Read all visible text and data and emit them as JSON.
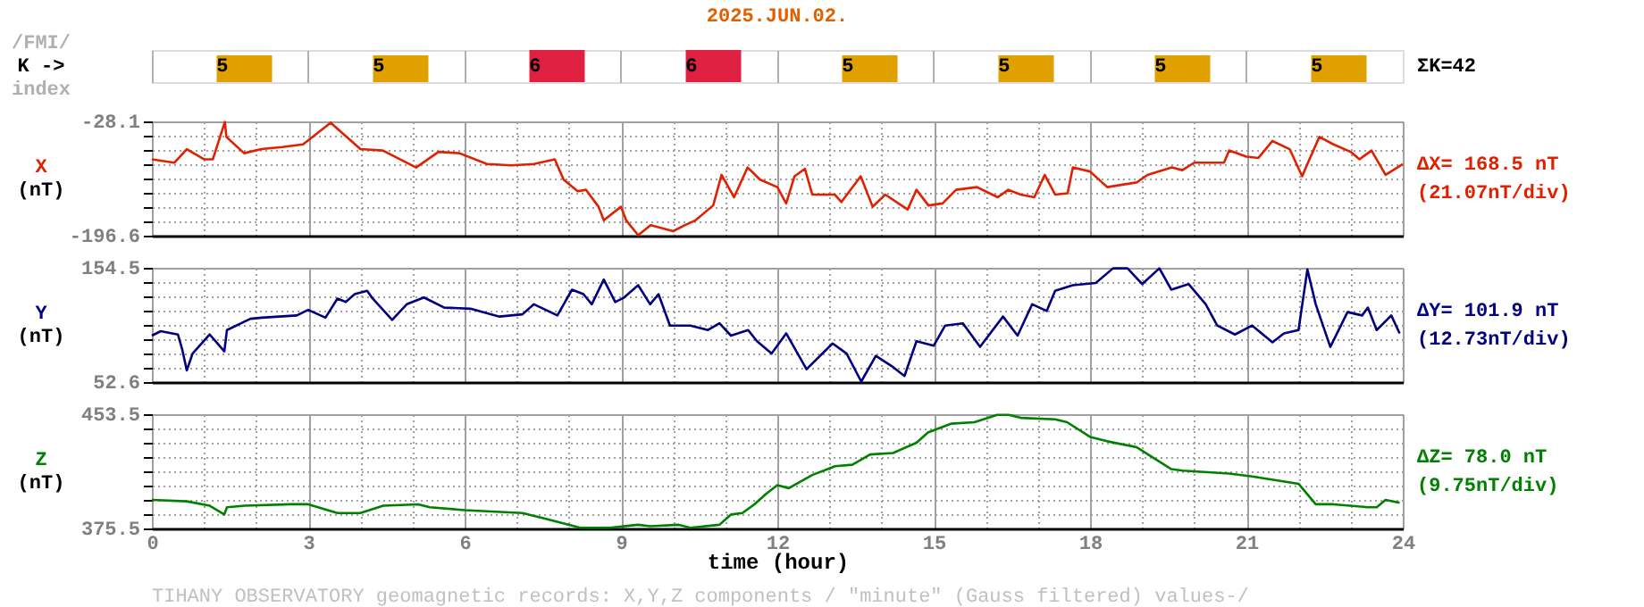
{
  "chart_data": [
    {
      "type": "bar",
      "title": "2025.JUN.02.",
      "ylabel": "/FMI/\nK ->\nindex",
      "categories": [
        null,
        null,
        null,
        null,
        null,
        null,
        null,
        null
      ],
      "values": [
        5,
        5,
        6,
        6,
        5,
        5,
        5,
        5
      ],
      "colors": [
        "#e0a000",
        "#e0a000",
        "#e02040",
        "#e02040",
        "#e0a000",
        "#e0a000",
        "#e0a000",
        "#e0a000"
      ],
      "data_labels": true,
      "grid": "x",
      "annotations": [
        "ΣK=42"
      ]
    },
    {
      "type": "line",
      "ylabel": "X\n(nT)",
      "xlim": [
        0,
        24
      ],
      "ylim": [
        -196.6,
        -28.1
      ],
      "xticks": [
        0,
        {
          "value": 1,
          "label": null
        },
        {
          "value": 2,
          "label": null
        },
        3,
        {
          "value": 4,
          "label": null
        },
        {
          "value": 5,
          "label": null
        },
        6,
        {
          "value": 7,
          "label": null
        },
        {
          "value": 8,
          "label": null
        },
        9,
        {
          "value": 10,
          "label": null
        },
        {
          "value": 11,
          "label": null
        },
        12,
        {
          "value": 13,
          "label": null
        },
        {
          "value": 14,
          "label": null
        },
        15,
        {
          "value": 16,
          "label": null
        },
        {
          "value": 17,
          "label": null
        },
        18,
        {
          "value": 19,
          "label": null
        },
        {
          "value": 20,
          "label": null
        },
        21,
        {
          "value": 22,
          "label": null
        },
        {
          "value": 23,
          "label": null
        },
        24
      ],
      "yticks": [
        -196.6,
        {
          "value": -175.54,
          "label": null
        },
        {
          "value": -154.48,
          "label": null
        },
        {
          "value": -133.41,
          "label": null
        },
        {
          "value": -112.35,
          "label": null
        },
        {
          "value": -91.29,
          "label": null
        },
        {
          "value": -70.23,
          "label": null
        },
        {
          "value": -49.16,
          "label": null
        },
        -28.1
      ],
      "grid": true,
      "tick_labels": "y",
      "annotations": [
        "ΔX= 168.5 nT",
        "(21.07nT/div)"
      ],
      "series": [
        {
          "color": "#e02000",
          "x": [
            0,
            0.43,
            0.67,
            1.0,
            1.17,
            1.4,
            1.43,
            1.77,
            2.1,
            2.5,
            2.9,
            3.43,
            4.0,
            4.43,
            5.07,
            5.5,
            5.9,
            6.43,
            6.9,
            7.33,
            7.73,
            7.9,
            8.17,
            8.33,
            8.57,
            8.67,
            9.0,
            9.1,
            9.33,
            9.57,
            10.0,
            10.23,
            10.43,
            10.77,
            10.93,
            11.17,
            11.43,
            11.67,
            12.0,
            12.17,
            12.33,
            12.53,
            12.67,
            13.1,
            13.23,
            13.6,
            13.83,
            14.07,
            14.5,
            14.67,
            14.9,
            15.17,
            15.43,
            15.83,
            16.23,
            16.43,
            16.67,
            16.93,
            17.13,
            17.33,
            17.57,
            17.67,
            18.0,
            18.33,
            18.9,
            19.1,
            19.57,
            19.77,
            20.0,
            20.57,
            20.67,
            21.0,
            21.23,
            21.5,
            21.83,
            22.07,
            22.17,
            22.4,
            22.67,
            23.0,
            23.17,
            23.4,
            23.67,
            24
          ],
          "values": [
            -84,
            -89,
            -69,
            -84,
            -84,
            -29,
            -51,
            -75,
            -69,
            -66,
            -62,
            -30,
            -69,
            -71,
            -96,
            -73,
            -75,
            -91,
            -93,
            -91,
            -84,
            -114,
            -131,
            -129,
            -154,
            -174,
            -154,
            -174,
            -196,
            -181,
            -190,
            -181,
            -174,
            -152,
            -107,
            -140,
            -96,
            -114,
            -125,
            -149,
            -109,
            -98,
            -136,
            -136,
            -147,
            -109,
            -154,
            -136,
            -158,
            -129,
            -152,
            -149,
            -129,
            -125,
            -140,
            -129,
            -136,
            -140,
            -107,
            -136,
            -134,
            -96,
            -102,
            -125,
            -118,
            -107,
            -96,
            -100,
            -89,
            -89,
            -71,
            -80,
            -82,
            -57,
            -69,
            -109,
            -91,
            -51,
            -62,
            -73,
            -84,
            -71,
            -107,
            -91
          ]
        }
      ]
    },
    {
      "type": "line",
      "ylabel": "Y\n(nT)",
      "xlim": [
        0,
        24
      ],
      "ylim": [
        52.6,
        154.5
      ],
      "xticks": [
        0,
        {
          "value": 1,
          "label": null
        },
        {
          "value": 2,
          "label": null
        },
        3,
        {
          "value": 4,
          "label": null
        },
        {
          "value": 5,
          "label": null
        },
        6,
        {
          "value": 7,
          "label": null
        },
        {
          "value": 8,
          "label": null
        },
        9,
        {
          "value": 10,
          "label": null
        },
        {
          "value": 11,
          "label": null
        },
        12,
        {
          "value": 13,
          "label": null
        },
        {
          "value": 14,
          "label": null
        },
        15,
        {
          "value": 16,
          "label": null
        },
        {
          "value": 17,
          "label": null
        },
        18,
        {
          "value": 19,
          "label": null
        },
        {
          "value": 20,
          "label": null
        },
        21,
        {
          "value": 22,
          "label": null
        },
        {
          "value": 23,
          "label": null
        },
        24
      ],
      "yticks": [
        52.6,
        {
          "value": 65.34,
          "label": null
        },
        {
          "value": 78.08,
          "label": null
        },
        {
          "value": 90.81,
          "label": null
        },
        {
          "value": 103.55,
          "label": null
        },
        {
          "value": 116.29,
          "label": null
        },
        {
          "value": 129.03,
          "label": null
        },
        {
          "value": 141.76,
          "label": null
        },
        154.5
      ],
      "grid": true,
      "tick_labels": "y",
      "annotations": [
        "ΔY= 101.9 nT",
        "(12.73nT/div)"
      ],
      "series": [
        {
          "color": "#000080",
          "x": [
            0,
            0.17,
            0.5,
            0.58,
            0.67,
            0.78,
            1.11,
            1.39,
            1.44,
            1.89,
            2.11,
            2.78,
            3.0,
            3.33,
            3.56,
            3.72,
            3.89,
            4.13,
            4.22,
            4.61,
            4.89,
            5.22,
            5.61,
            6.11,
            6.67,
            7.11,
            7.33,
            7.78,
            8.06,
            8.28,
            8.44,
            8.67,
            8.89,
            9.06,
            9.33,
            9.56,
            9.72,
            9.94,
            10.33,
            10.67,
            10.89,
            11.11,
            11.44,
            11.61,
            11.89,
            12.0,
            12.17,
            12.56,
            13.06,
            13.33,
            13.61,
            13.89,
            14.22,
            14.44,
            14.67,
            15.0,
            15.22,
            15.56,
            15.89,
            16.33,
            16.61,
            16.89,
            17.17,
            17.33,
            17.67,
            18.11,
            18.44,
            18.72,
            19.0,
            19.33,
            19.56,
            19.89,
            20.22,
            20.44,
            20.78,
            21.11,
            21.5,
            21.72,
            22.0,
            22.17,
            22.33,
            22.61,
            22.94,
            23.22,
            23.33,
            23.5,
            23.78,
            23.94
          ],
          "values": [
            94,
            98,
            95,
            82,
            63,
            78,
            95,
            80,
            99,
            109,
            110,
            112,
            117,
            110,
            127,
            124,
            131,
            134,
            128,
            108,
            122,
            128,
            119,
            118,
            111,
            113,
            122,
            112,
            135,
            131,
            122,
            144,
            124,
            128,
            139,
            122,
            131,
            103,
            103,
            99,
            105,
            94,
            99,
            89,
            78,
            85,
            96,
            64,
            87,
            78,
            53,
            76,
            66,
            58,
            89,
            85,
            103,
            105,
            84,
            111,
            94,
            122,
            116,
            134,
            139,
            141,
            154,
            154,
            140,
            154,
            135,
            140,
            122,
            103,
            95,
            103,
            88,
            96,
            99,
            153,
            122,
            84,
            115,
            112,
            119,
            99,
            112,
            96
          ]
        }
      ]
    },
    {
      "type": "line",
      "ylabel": "Z\n(nT)",
      "xlabel": "time (hour)",
      "xlim": [
        0,
        24
      ],
      "ylim": [
        375.5,
        453.5
      ],
      "xticks": [
        {
          "value": 0,
          "label": "0"
        },
        {
          "value": 1,
          "label": null
        },
        {
          "value": 2,
          "label": null
        },
        {
          "value": 3,
          "label": "3"
        },
        {
          "value": 4,
          "label": null
        },
        {
          "value": 5,
          "label": null
        },
        {
          "value": 6,
          "label": "6"
        },
        {
          "value": 7,
          "label": null
        },
        {
          "value": 8,
          "label": null
        },
        {
          "value": 9,
          "label": "9"
        },
        {
          "value": 10,
          "label": null
        },
        {
          "value": 11,
          "label": null
        },
        {
          "value": 12,
          "label": "12"
        },
        {
          "value": 13,
          "label": null
        },
        {
          "value": 14,
          "label": null
        },
        {
          "value": 15,
          "label": "15"
        },
        {
          "value": 16,
          "label": null
        },
        {
          "value": 17,
          "label": null
        },
        {
          "value": 18,
          "label": "18"
        },
        {
          "value": 19,
          "label": null
        },
        {
          "value": 20,
          "label": null
        },
        {
          "value": 21,
          "label": "21"
        },
        {
          "value": 22,
          "label": null
        },
        {
          "value": 23,
          "label": null
        },
        {
          "value": 24,
          "label": "24"
        }
      ],
      "yticks": [
        375.5,
        {
          "value": 385.25,
          "label": null
        },
        {
          "value": 395.0,
          "label": null
        },
        {
          "value": 404.75,
          "label": null
        },
        {
          "value": 414.5,
          "label": null
        },
        {
          "value": 424.25,
          "label": null
        },
        {
          "value": 434.0,
          "label": null
        },
        {
          "value": 443.75,
          "label": null
        },
        453.5
      ],
      "grid": true,
      "annotations": [
        "ΔZ= 78.0 nT",
        "(9.75nT/div)",
        "TIHANY OBSERVATORY   geomagnetic records:  X,Y,Z  components    / \"minute\" (Gauss filtered) values-/"
      ],
      "series": [
        {
          "color": "#008000",
          "x": [
            0,
            0.67,
            1.11,
            1.39,
            1.44,
            1.78,
            2.67,
            3.0,
            3.56,
            4.0,
            4.44,
            5.11,
            5.33,
            6.0,
            7.11,
            7.56,
            8.22,
            8.78,
            9.33,
            9.56,
            10.11,
            10.33,
            10.89,
            11.11,
            11.33,
            11.56,
            11.78,
            12.0,
            12.22,
            12.67,
            13.11,
            13.44,
            13.78,
            14.22,
            14.67,
            14.89,
            15.33,
            15.78,
            16.22,
            16.44,
            16.67,
            17.33,
            17.56,
            18.0,
            18.33,
            18.89,
            19.56,
            19.78,
            20.67,
            21.11,
            22.0,
            22.33,
            22.67,
            23.33,
            23.5,
            23.67,
            23.94
          ],
          "values": [
            395,
            394,
            391,
            385,
            390,
            391,
            392,
            392,
            386,
            386,
            391,
            392,
            390,
            388,
            386,
            382,
            376,
            376,
            378,
            377,
            378,
            376,
            378,
            385,
            386,
            392,
            399,
            405,
            403,
            412,
            418,
            419,
            426,
            427,
            434,
            441,
            447,
            448,
            453,
            453,
            451,
            450,
            448,
            438,
            435,
            431,
            416,
            415,
            413,
            411,
            406,
            392,
            392,
            390,
            390,
            395,
            393
          ]
        }
      ]
    }
  ]
}
